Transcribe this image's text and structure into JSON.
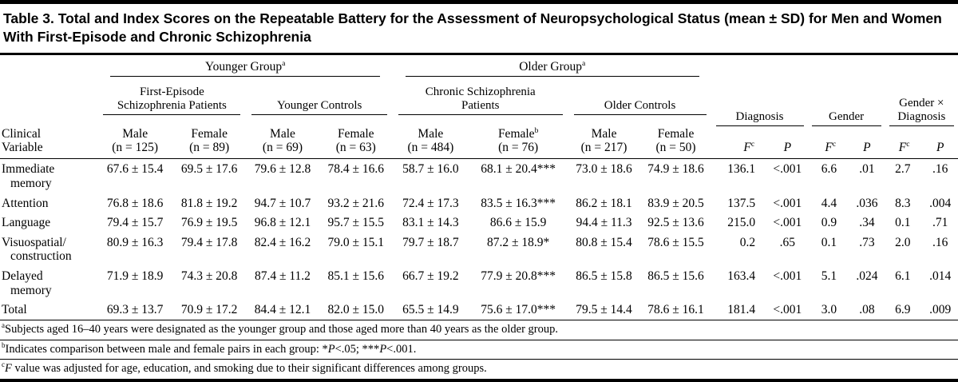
{
  "title": "Table 3. Total and Index Scores on the Repeatable Battery for the Assessment of Neuropsychological Status (mean ± SD) for Men and Women With First-Episode and Chronic Schizophrenia",
  "header": {
    "groups": [
      {
        "label": "Younger Group",
        "sup": "a"
      },
      {
        "label": "Older Group",
        "sup": "a"
      }
    ],
    "subgroups": [
      {
        "label": "First-Episode\nSchizophrenia Patients"
      },
      {
        "label": "Younger Controls"
      },
      {
        "label": "Chronic Schizophrenia\nPatients"
      },
      {
        "label": "Older Controls"
      }
    ],
    "stat_groups": [
      {
        "label": "Diagnosis"
      },
      {
        "label": "Gender"
      },
      {
        "label": "Gender ×\nDiagnosis"
      }
    ],
    "clinical_variable": {
      "line1": "Clinical",
      "line2": "Variable"
    },
    "columns": [
      {
        "line1": "Male",
        "line2": "(n = 125)"
      },
      {
        "line1": "Female",
        "line2": "(n = 89)"
      },
      {
        "line1": "Male",
        "line2": "(n = 69)"
      },
      {
        "line1": "Female",
        "line2": "(n = 63)"
      },
      {
        "line1": "Male",
        "line2": "(n = 484)"
      },
      {
        "line1": "Female",
        "sup": "b",
        "line2": "(n = 76)"
      },
      {
        "line1": "Male",
        "line2": "(n = 217)"
      },
      {
        "line1": "Female",
        "line2": "(n = 50)"
      }
    ],
    "stat_cols": {
      "f": "F",
      "f_sup": "c",
      "p": "P"
    }
  },
  "rows": [
    {
      "name": [
        "Immediate",
        "memory"
      ],
      "values": [
        "67.6 ± 15.4",
        "69.5 ± 17.6",
        "79.6 ± 12.8",
        "78.4 ± 16.6",
        "58.7 ± 16.0",
        "68.1 ± 20.4***",
        "73.0 ± 18.6",
        "74.9 ± 18.6"
      ],
      "stats": [
        "136.1",
        "<.001",
        "6.6",
        ".01",
        "2.7",
        ".16"
      ]
    },
    {
      "name": [
        "Attention"
      ],
      "values": [
        "76.8 ± 18.6",
        "81.8 ± 19.2",
        "94.7 ± 10.7",
        "93.2 ± 21.6",
        "72.4 ± 17.3",
        "83.5 ± 16.3***",
        "86.2 ± 18.1",
        "83.9 ± 20.5"
      ],
      "stats": [
        "137.5",
        "<.001",
        "4.4",
        ".036",
        "8.3",
        ".004"
      ]
    },
    {
      "name": [
        "Language"
      ],
      "values": [
        "79.4 ± 15.7",
        "76.9 ± 19.5",
        "96.8 ± 12.1",
        "95.7 ± 15.5",
        "83.1 ± 14.3",
        "86.6 ± 15.9",
        "94.4 ± 11.3",
        "92.5 ± 13.6"
      ],
      "stats": [
        "215.0",
        "<.001",
        "0.9",
        ".34",
        "0.1",
        ".71"
      ]
    },
    {
      "name": [
        "Visuospatial/",
        "construction"
      ],
      "values": [
        "80.9 ± 16.3",
        "79.4 ± 17.8",
        "82.4 ± 16.2",
        "79.0 ± 15.1",
        "79.7 ± 18.7",
        "87.2 ± 18.9*",
        "80.8 ± 15.4",
        "78.6 ± 15.5"
      ],
      "stats": [
        "0.2",
        ".65",
        "0.1",
        ".73",
        "2.0",
        ".16"
      ]
    },
    {
      "name": [
        "Delayed",
        "memory"
      ],
      "values": [
        "71.9 ± 18.9",
        "74.3 ± 20.8",
        "87.4 ± 11.2",
        "85.1 ± 15.6",
        "66.7 ± 19.2",
        "77.9 ± 20.8***",
        "86.5 ± 15.8",
        "86.5 ± 15.6"
      ],
      "stats": [
        "163.4",
        "<.001",
        "5.1",
        ".024",
        "6.1",
        ".014"
      ]
    },
    {
      "name": [
        "Total"
      ],
      "values": [
        "69.3 ± 13.7",
        "70.9 ± 17.2",
        "84.4 ± 12.1",
        "82.0 ± 15.0",
        "65.5 ± 14.9",
        "75.6 ± 17.0***",
        "79.5 ± 14.4",
        "78.6 ± 16.1"
      ],
      "stats": [
        "181.4",
        "<.001",
        "3.0",
        ".08",
        "6.9",
        ".009"
      ]
    }
  ],
  "footnotes": [
    {
      "sup": "a",
      "parts": [
        {
          "t": "Subjects aged 16–40 years were designated as the younger group and those aged more than 40 years as the older group."
        }
      ]
    },
    {
      "sup": "b",
      "parts": [
        {
          "t": "Indicates comparison between male and female pairs in each group: *"
        },
        {
          "t": "P",
          "i": true
        },
        {
          "t": "<.05; ***"
        },
        {
          "t": "P",
          "i": true
        },
        {
          "t": "<.001."
        }
      ]
    },
    {
      "sup": "c",
      "parts": [
        {
          "t": "F",
          "i": true
        },
        {
          "t": " value was adjusted for age, education, and smoking due to their significant differences among groups."
        }
      ]
    }
  ],
  "colors": {
    "text": "#000000",
    "background": "#ffffff",
    "rule": "#000000"
  }
}
